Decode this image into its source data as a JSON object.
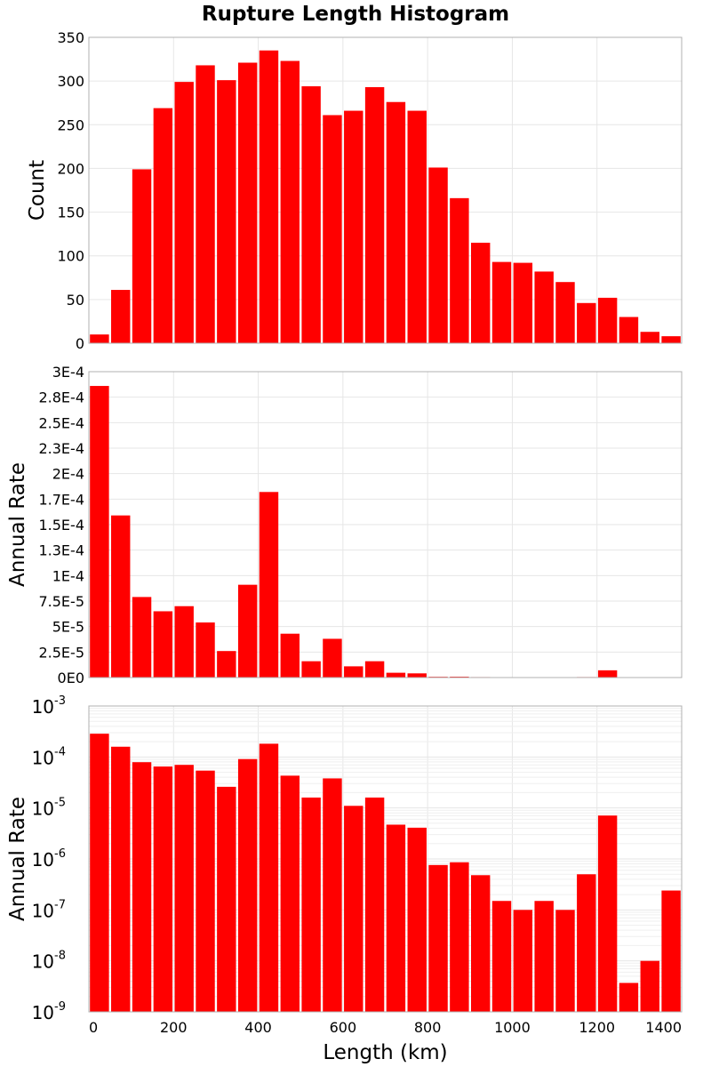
{
  "title": "Rupture Length Histogram",
  "bar_color": "#ff0000",
  "grid_color": "#e6e6e6",
  "chart_data": [
    {
      "type": "bar",
      "title": "",
      "xlabel": "",
      "ylabel": "Count",
      "xlim": [
        0,
        1400
      ],
      "ylim": [
        0,
        350
      ],
      "yscale": "linear",
      "grid": true,
      "bin_width": 50,
      "bin_starts": [
        0,
        50,
        100,
        150,
        200,
        250,
        300,
        350,
        400,
        450,
        500,
        550,
        600,
        650,
        700,
        750,
        800,
        850,
        900,
        950,
        1000,
        1050,
        1100,
        1150,
        1200,
        1250,
        1300,
        1350
      ],
      "values": [
        10,
        61,
        199,
        269,
        299,
        318,
        301,
        321,
        335,
        323,
        294,
        261,
        266,
        293,
        276,
        266,
        201,
        166,
        115,
        93,
        92,
        82,
        70,
        46,
        52,
        30,
        13,
        8
      ],
      "yticks": [
        0,
        50,
        100,
        150,
        200,
        250,
        300,
        350
      ],
      "ytick_labels": [
        "0",
        "50",
        "100",
        "150",
        "200",
        "250",
        "300",
        "350"
      ]
    },
    {
      "type": "bar",
      "title": "",
      "xlabel": "",
      "ylabel": "Annual Rate",
      "xlim": [
        0,
        1400
      ],
      "ylim": [
        0,
        0.0003
      ],
      "yscale": "linear",
      "grid": true,
      "bin_width": 50,
      "bin_starts": [
        0,
        50,
        100,
        150,
        200,
        250,
        300,
        350,
        400,
        450,
        500,
        550,
        600,
        650,
        700,
        750,
        800,
        850,
        900,
        950,
        1000,
        1050,
        1100,
        1150,
        1200,
        1250,
        1300,
        1350
      ],
      "values": [
        0.000286,
        0.000159,
        7.9e-05,
        6.5e-05,
        7e-05,
        5.4e-05,
        2.6e-05,
        9.1e-05,
        0.000182,
        4.3e-05,
        1.6e-05,
        3.8e-05,
        1.1e-05,
        1.6e-05,
        4.7e-06,
        4.1e-06,
        7.6e-07,
        8.6e-07,
        4.8e-07,
        1.5e-07,
        1e-07,
        1.5e-07,
        1e-07,
        5e-07,
        7.1e-06,
        3.7e-09,
        1e-08,
        2.4e-07
      ],
      "yticks": [
        0,
        2.5e-05,
        5e-05,
        7.5e-05,
        0.0001,
        0.000125,
        0.00015,
        0.000175,
        0.0002,
        0.000225,
        0.00025,
        0.000275,
        0.0003
      ],
      "ytick_labels": [
        "0E0",
        "2.5E-5",
        "5E-5",
        "7.5E-5",
        "1E-4",
        "1.3E-4",
        "1.5E-4",
        "1.7E-4",
        "2E-4",
        "2.3E-4",
        "2.5E-4",
        "2.8E-4",
        "3E-4"
      ]
    },
    {
      "type": "bar",
      "title": "",
      "xlabel": "Length (km)",
      "ylabel": "Annual Rate",
      "xlim": [
        0,
        1400
      ],
      "ylim": [
        1e-09,
        0.001
      ],
      "yscale": "log",
      "grid": true,
      "bin_width": 50,
      "bin_starts": [
        0,
        50,
        100,
        150,
        200,
        250,
        300,
        350,
        400,
        450,
        500,
        550,
        600,
        650,
        700,
        750,
        800,
        850,
        900,
        950,
        1000,
        1050,
        1100,
        1150,
        1200,
        1250,
        1300,
        1350
      ],
      "values": [
        0.000286,
        0.000159,
        7.9e-05,
        6.5e-05,
        7e-05,
        5.4e-05,
        2.6e-05,
        9.1e-05,
        0.000182,
        4.3e-05,
        1.6e-05,
        3.8e-05,
        1.1e-05,
        1.6e-05,
        4.7e-06,
        4.1e-06,
        7.6e-07,
        8.6e-07,
        4.8e-07,
        1.5e-07,
        1e-07,
        1.5e-07,
        1e-07,
        5e-07,
        7.1e-06,
        3.7e-09,
        1e-08,
        2.4e-07
      ],
      "ytick_exponents": [
        -9,
        -8,
        -7,
        -6,
        -5,
        -4,
        -3
      ],
      "ytick_base": "10",
      "xticks": [
        0,
        200,
        400,
        600,
        800,
        1000,
        1200,
        1400
      ],
      "xtick_labels": [
        "0",
        "200",
        "400",
        "600",
        "800",
        "1000",
        "1200",
        "1400"
      ]
    }
  ]
}
